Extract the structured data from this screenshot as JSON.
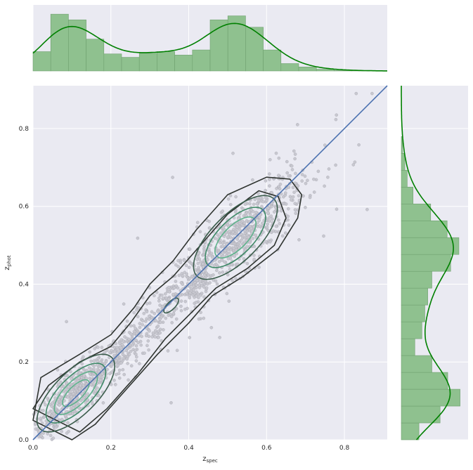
{
  "chart_data": {
    "type": "scatter",
    "title": "",
    "xlabel_main": "z",
    "xlabel_sub": "spec",
    "ylabel_main": "z",
    "ylabel_sub": "phot",
    "xlim": [
      0,
      0.91
    ],
    "ylim": [
      0,
      0.91
    ],
    "xticks": [
      0.0,
      0.2,
      0.4,
      0.6,
      0.8
    ],
    "yticks": [
      0.0,
      0.2,
      0.4,
      0.6,
      0.8
    ],
    "tick_labels": [
      "0.0",
      "0.2",
      "0.4",
      "0.6",
      "0.8"
    ],
    "grid": true,
    "reference_line": {
      "x": [
        0,
        0.91
      ],
      "y": [
        0,
        0.91
      ]
    },
    "colors": {
      "background": "#eaeaf2",
      "grid": "#ffffff",
      "scatter": "#c8c8d0",
      "scatter_edge": "#9a9aa4",
      "line": "#4c72b0",
      "hist_fill": "#8fc18f",
      "hist_edge": "#6fa06f",
      "kde": "#008000",
      "contour_dark": "#2f3430",
      "contour_light": "#5fb38c"
    },
    "marginal_x": {
      "bin_width": 0.0455,
      "counts": [
        0.34,
        1.0,
        0.9,
        0.56,
        0.3,
        0.24,
        0.31,
        0.34,
        0.28,
        0.37,
        0.9,
        0.97,
        0.77,
        0.37,
        0.13,
        0.07,
        0.03,
        0.01,
        0.005,
        0.0
      ]
    },
    "marginal_y": {
      "bin_width": 0.0433,
      "counts": [
        0.3,
        0.66,
        1.0,
        0.79,
        0.52,
        0.23,
        0.35,
        0.4,
        0.45,
        0.52,
        0.84,
        0.98,
        0.78,
        0.5,
        0.2,
        0.1,
        0.06,
        0.02,
        0.0,
        0.0,
        0.0
      ]
    },
    "scatter_seed_counts": {
      "low_cluster": 520,
      "mid": 380,
      "high_cluster": 620,
      "outliers": 55
    }
  }
}
